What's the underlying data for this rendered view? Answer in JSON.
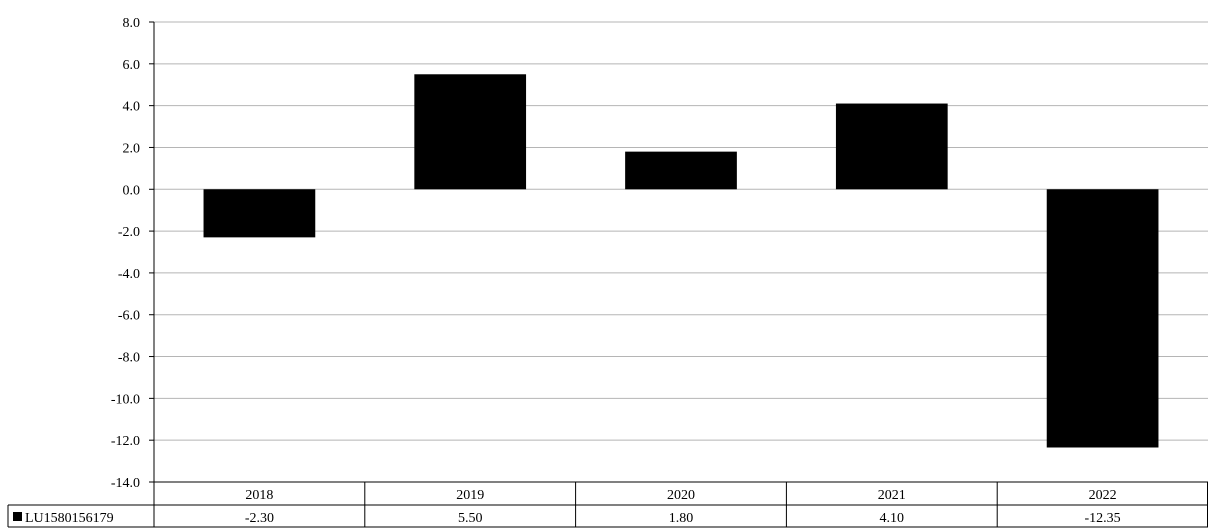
{
  "chart_data": {
    "type": "bar",
    "title": "",
    "xlabel": "",
    "ylabel": "",
    "categories": [
      "2018",
      "2019",
      "2020",
      "2021",
      "2022"
    ],
    "series": [
      {
        "name": "LU1580156179",
        "values": [
          -2.3,
          5.5,
          1.8,
          4.1,
          -12.35
        ],
        "value_labels": [
          "-2.30",
          "5.50",
          "1.80",
          "4.10",
          "-12.35"
        ],
        "color": "#000000"
      }
    ],
    "ylim": [
      -14,
      8
    ],
    "y_ticks": [
      8,
      6,
      4,
      2,
      0,
      -2,
      -4,
      -6,
      -8,
      -10,
      -12,
      -14
    ],
    "y_tick_labels": [
      "8.0",
      "6.0",
      "4.0",
      "2.0",
      "0.0",
      "-2.0",
      "-4.0",
      "-6.0",
      "-8.0",
      "-10.0",
      "-12.0",
      "-14.0"
    ],
    "grid": true,
    "grid_color": "#b5b5b5",
    "legend": "data-table below chart"
  }
}
